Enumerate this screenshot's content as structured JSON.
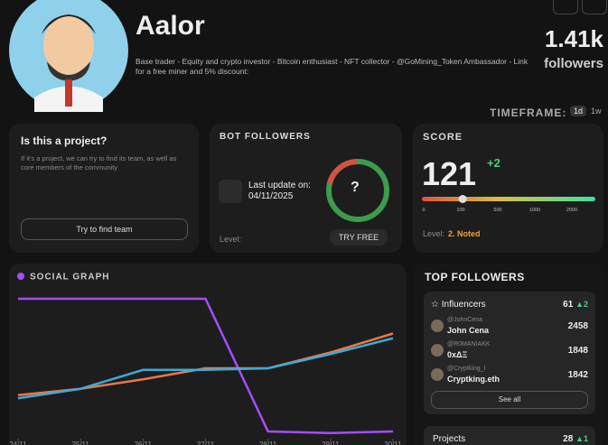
{
  "profile": {
    "name": "Aalor",
    "bio": "Base trader - Equity and crypto investor - Bitcoin enthusiast - NFT collector - @GoMining_Token Ambassador - Link for a free miner and 5% discount:",
    "followers_count": "1.41k",
    "followers_label": "followers"
  },
  "timeframe": {
    "label": "TIMEFRAME:",
    "options": [
      "1d",
      "1w"
    ]
  },
  "project_card": {
    "title": "Is this a project?",
    "text": "If it's a project, we can try to find its team, as well as core members of the community",
    "button": "Try to find team"
  },
  "bot_followers": {
    "title": "BOT FOLLOWERS",
    "update_label": "Last update on:",
    "update_date": "04/11/2025",
    "result": "?",
    "level_label": "Level:",
    "button": "TRY FREE"
  },
  "score": {
    "title": "SCORE",
    "value": 121,
    "delta": "+2",
    "scale": [
      0,
      100,
      500,
      1000,
      2000
    ],
    "level_label": "Level:",
    "level_value": "2. Noted"
  },
  "chart_data": {
    "type": "line",
    "title": "SOCIAL GRAPH",
    "categories": [
      "24/11",
      "25/11",
      "26/11",
      "27/11",
      "28/11",
      "29/11",
      "30/11"
    ],
    "ylim": [
      0,
      100
    ],
    "series": [
      {
        "color": "#a64dff",
        "values": [
          88,
          88,
          88,
          88,
          4,
          3,
          4
        ]
      },
      {
        "color": "#e8784a",
        "values": [
          27,
          31,
          37,
          44,
          44,
          54,
          66
        ]
      },
      {
        "color": "#3fa9d6",
        "values": [
          25,
          31,
          43,
          43,
          44,
          53,
          63
        ]
      }
    ]
  },
  "top_followers": {
    "title": "TOP FOLLOWERS",
    "influencers": {
      "label": "Influencers",
      "count": 61,
      "delta": 2,
      "items": [
        {
          "handle": "@JohnCena",
          "name": "John Cena",
          "followers": 2458
        },
        {
          "handle": "@R0MANIAKK",
          "name": "0xΔΞ",
          "followers": 1848
        },
        {
          "handle": "@Cryptking_l",
          "name": "Cryptking.eth",
          "followers": 1842
        }
      ],
      "see_all": "See all"
    },
    "projects": {
      "label": "Projects",
      "count": 28,
      "delta": 1
    }
  }
}
